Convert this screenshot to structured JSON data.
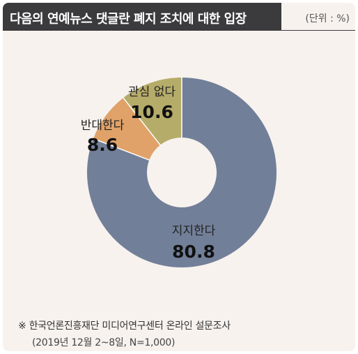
{
  "header": {
    "title": "다음의 연예뉴스 댓글란 폐지 조치에 대한 입장",
    "unit": "(단위 : %)"
  },
  "chart_data": {
    "type": "pie",
    "donut": true,
    "categories": [
      "지지한다",
      "반대한다",
      "관심 없다"
    ],
    "values": [
      80.8,
      8.6,
      10.6
    ],
    "value_labels": [
      "80.8",
      "8.6",
      "10.6"
    ],
    "colors": [
      "#727f99",
      "#e0a268",
      "#b6ac6a"
    ],
    "title": "다음의 연예뉴스 댓글란 폐지 조치에 대한 입장",
    "unit": "%"
  },
  "footer": {
    "source": "※  한국언론진흥재단 미디어연구센터 온라인 설문조사",
    "detail": "(2019년 12월 2~8일, N=1,000)"
  }
}
